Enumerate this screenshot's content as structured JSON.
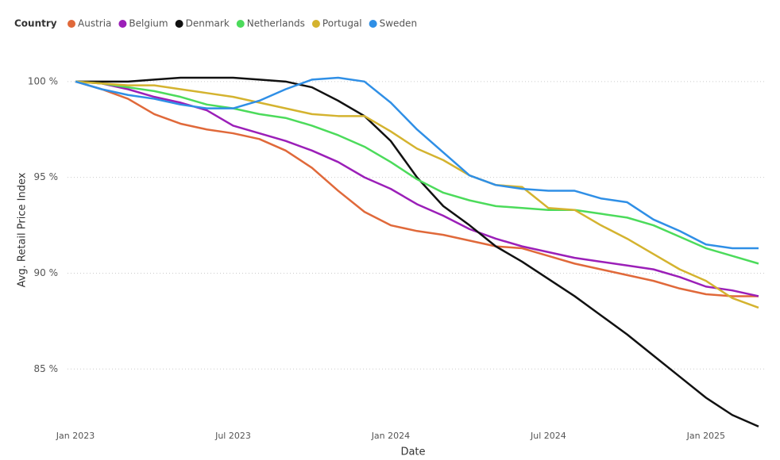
{
  "chart_data": {
    "type": "line",
    "legend_title": "Country",
    "x_label": "Date",
    "y_label": "Avg. Retail Price Index",
    "x": [
      "2023-01",
      "2023-02",
      "2023-03",
      "2023-04",
      "2023-05",
      "2023-06",
      "2023-07",
      "2023-08",
      "2023-09",
      "2023-10",
      "2023-11",
      "2023-12",
      "2024-01",
      "2024-02",
      "2024-03",
      "2024-04",
      "2024-05",
      "2024-06",
      "2024-07",
      "2024-08",
      "2024-09",
      "2024-10",
      "2024-11",
      "2024-12",
      "2025-01",
      "2025-02",
      "2025-03"
    ],
    "xticks": [
      {
        "value": "2023-01",
        "label": "Jan 2023"
      },
      {
        "value": "2023-07",
        "label": "Jul 2023"
      },
      {
        "value": "2024-01",
        "label": "Jan 2024"
      },
      {
        "value": "2024-07",
        "label": "Jul 2024"
      },
      {
        "value": "2025-01",
        "label": "Jan 2025"
      }
    ],
    "ylim": [
      81.7,
      102.6
    ],
    "yticks": [
      {
        "value": 85,
        "label": "85 %"
      },
      {
        "value": 90,
        "label": "90 %"
      },
      {
        "value": 95,
        "label": "95 %"
      },
      {
        "value": 100,
        "label": "100 %"
      }
    ],
    "grid": true,
    "legend": "top-left",
    "series": [
      {
        "name": "Austria",
        "color": "#e0693a",
        "values": [
          100,
          99.6,
          99.1,
          98.3,
          97.8,
          97.5,
          97.3,
          97.0,
          96.4,
          95.5,
          94.3,
          93.2,
          92.5,
          92.2,
          92.0,
          91.7,
          91.4,
          91.3,
          90.9,
          90.5,
          90.2,
          89.9,
          89.6,
          89.2,
          88.9,
          88.8,
          88.8
        ]
      },
      {
        "name": "Belgium",
        "color": "#9b1fb8",
        "values": [
          100,
          99.9,
          99.6,
          99.2,
          98.9,
          98.5,
          97.7,
          97.3,
          96.9,
          96.4,
          95.8,
          95.0,
          94.4,
          93.6,
          93.0,
          92.3,
          91.8,
          91.4,
          91.1,
          90.8,
          90.6,
          90.4,
          90.2,
          89.8,
          89.3,
          89.1,
          88.8
        ]
      },
      {
        "name": "Denmark",
        "color": "#111111",
        "values": [
          100,
          100,
          100,
          100.1,
          100.2,
          100.2,
          100.2,
          100.1,
          100.0,
          99.7,
          99.0,
          98.2,
          96.9,
          95.0,
          93.5,
          92.5,
          91.4,
          90.6,
          89.7,
          88.8,
          87.8,
          86.8,
          85.7,
          84.6,
          83.5,
          82.6,
          82.0
        ]
      },
      {
        "name": "Netherlands",
        "color": "#4cdb5b",
        "values": [
          100,
          99.9,
          99.7,
          99.5,
          99.2,
          98.8,
          98.6,
          98.3,
          98.1,
          97.7,
          97.2,
          96.6,
          95.8,
          94.9,
          94.2,
          93.8,
          93.5,
          93.4,
          93.3,
          93.3,
          93.1,
          92.9,
          92.5,
          91.9,
          91.3,
          90.9,
          90.5
        ]
      },
      {
        "name": "Portugal",
        "color": "#d4b32f",
        "values": [
          100,
          99.9,
          99.8,
          99.8,
          99.6,
          99.4,
          99.2,
          98.9,
          98.6,
          98.3,
          98.2,
          98.2,
          97.4,
          96.5,
          95.9,
          95.1,
          94.6,
          94.5,
          93.4,
          93.3,
          92.5,
          91.8,
          91.0,
          90.2,
          89.6,
          88.7,
          88.2
        ]
      },
      {
        "name": "Sweden",
        "color": "#2f8fe6",
        "values": [
          100,
          99.6,
          99.3,
          99.1,
          98.8,
          98.6,
          98.6,
          99.0,
          99.6,
          100.1,
          100.2,
          100.0,
          98.9,
          97.5,
          96.3,
          95.1,
          94.6,
          94.4,
          94.3,
          94.3,
          93.9,
          93.7,
          92.8,
          92.2,
          91.5,
          91.3,
          91.3
        ]
      }
    ]
  }
}
